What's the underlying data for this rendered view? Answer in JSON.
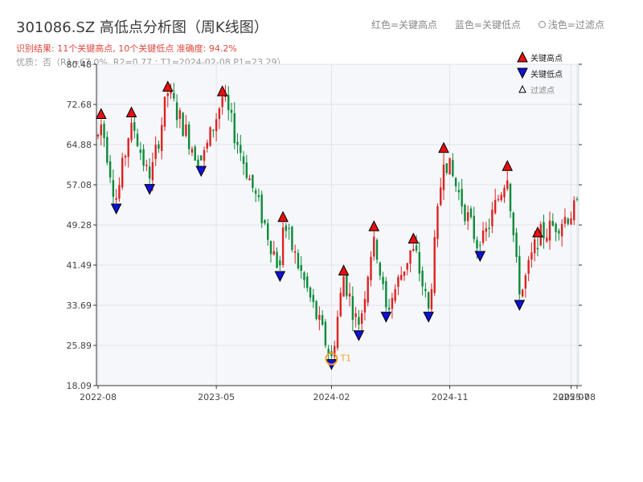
{
  "header": {
    "title": "301086.SZ 高低点分析图（周K线图）",
    "result": "识别结果: 11个关键高点, 10个关键低点  准确度: 94.2%",
    "quality": "优质：否（R1=67.0%, R2=0.77 ; T1=2024-02-08 P1=23.29）"
  },
  "top_legend": {
    "red": "红色=关键高点",
    "blue": "蓝色=关键低点",
    "light": "浅色=过滤点"
  },
  "colors": {
    "up": "#dd2222",
    "down": "#0a8a3a",
    "high_marker": "#e81010",
    "low_marker": "#1010d8",
    "t1": "#f5a030",
    "plot_bg": "#f5f7fa",
    "grid": "#dfe3ea"
  },
  "chart_data": {
    "type": "candlestick",
    "title": "301086.SZ 高低点分析图（周K线图）",
    "y_ticks": [
      "18.09",
      "25.89",
      "33.69",
      "41.49",
      "49.28",
      "57.08",
      "64.88",
      "72.68",
      "80.48"
    ],
    "ylim": [
      18.09,
      80.48
    ],
    "x_ticks": [
      {
        "date": "2022-08",
        "week": 0
      },
      {
        "date": "2023-05",
        "week": 39
      },
      {
        "date": "2024-02",
        "week": 77
      },
      {
        "date": "2024-11",
        "week": 116
      },
      {
        "date": "2025-07",
        "week": 156
      },
      {
        "date": "2025-08",
        "week": 158
      }
    ],
    "legend": [
      "关键高点",
      "关键低点",
      "过滤点"
    ],
    "legend_position": "top-right",
    "key_highs": [
      {
        "week": 1,
        "value": 69.8
      },
      {
        "week": 11,
        "value": 70.1
      },
      {
        "week": 23,
        "value": 75.1
      },
      {
        "week": 41,
        "value": 74.2
      },
      {
        "week": 61,
        "value": 49.8
      },
      {
        "week": 81,
        "value": 39.4
      },
      {
        "week": 91,
        "value": 48.0
      },
      {
        "week": 104,
        "value": 45.6
      },
      {
        "week": 114,
        "value": 63.2
      },
      {
        "week": 135,
        "value": 59.7
      },
      {
        "week": 145,
        "value": 46.8
      }
    ],
    "key_lows": [
      {
        "week": 6,
        "value": 53.5
      },
      {
        "week": 17,
        "value": 57.3
      },
      {
        "week": 34,
        "value": 60.8
      },
      {
        "week": 60,
        "value": 40.4
      },
      {
        "week": 77,
        "value": 23.29
      },
      {
        "week": 86,
        "value": 28.9
      },
      {
        "week": 95,
        "value": 32.5
      },
      {
        "week": 109,
        "value": 32.5
      },
      {
        "week": 126,
        "value": 44.3
      },
      {
        "week": 139,
        "value": 34.8
      }
    ],
    "t1": {
      "label": "T1",
      "date": "2024-02-08",
      "week": 77,
      "value": 23.29
    },
    "weeks": 159
  }
}
